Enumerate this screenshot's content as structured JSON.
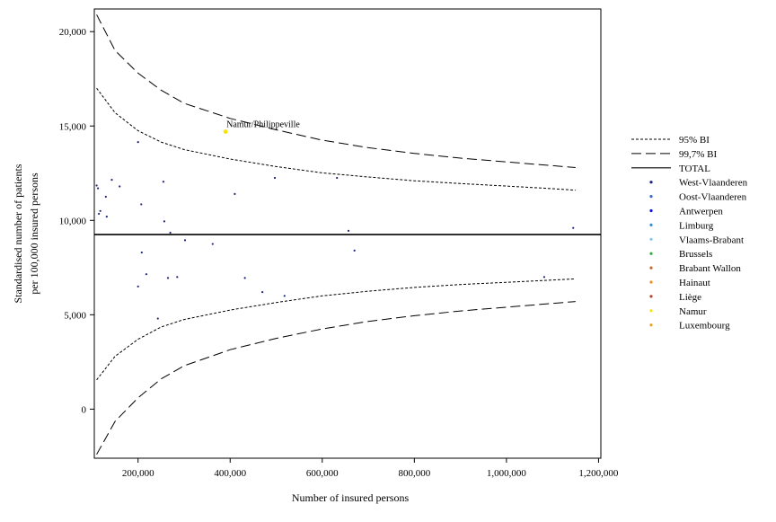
{
  "chart_data": {
    "type": "scatter",
    "xlabel": "Number of insured persons",
    "ylabel_lines": [
      "Standardised number of patients",
      "per 100,000 insured persons"
    ],
    "xlim": [
      105000,
      1205000
    ],
    "ylim": [
      -2600,
      21200
    ],
    "x_ticks": [
      {
        "value": 200000,
        "label": "200,000"
      },
      {
        "value": 400000,
        "label": "400,000"
      },
      {
        "value": 600000,
        "label": "600,000"
      },
      {
        "value": 800000,
        "label": "800,000"
      },
      {
        "value": 1000000,
        "label": "1,000,000"
      },
      {
        "value": 1200000,
        "label": "1,200,000"
      }
    ],
    "y_ticks": [
      {
        "value": 0,
        "label": "0"
      },
      {
        "value": 5000,
        "label": "5,000"
      },
      {
        "value": 10000,
        "label": "10,000"
      },
      {
        "value": 15000,
        "label": "15,000"
      },
      {
        "value": 20000,
        "label": "20,000"
      }
    ],
    "total": 9250,
    "legend": [
      {
        "label": "95% BI",
        "kind": "line",
        "style": "dotted"
      },
      {
        "label": "99,7% BI",
        "kind": "line",
        "style": "dashed"
      },
      {
        "label": "TOTAL",
        "kind": "line",
        "style": "solid"
      },
      {
        "label": "West-Vlaanderen",
        "kind": "point",
        "color": "#1a237e"
      },
      {
        "label": "Oost-Vlaanderen",
        "kind": "point",
        "color": "#3a66c4"
      },
      {
        "label": "Antwerpen",
        "kind": "point",
        "color": "#1010e0"
      },
      {
        "label": "Limburg",
        "kind": "point",
        "color": "#2b8fd6"
      },
      {
        "label": "Vlaams-Brabant",
        "kind": "point",
        "color": "#7fc8ee"
      },
      {
        "label": "Brussels",
        "kind": "point",
        "color": "#2ab03a"
      },
      {
        "label": "Brabant Wallon",
        "kind": "point",
        "color": "#c8642c"
      },
      {
        "label": "Hainaut",
        "kind": "point",
        "color": "#f08a24"
      },
      {
        "label": "Liège",
        "kind": "point",
        "color": "#b5442a"
      },
      {
        "label": "Namur",
        "kind": "point",
        "color": "#f6e400"
      },
      {
        "label": "Luxembourg",
        "kind": "point",
        "color": "#e8a21c"
      }
    ],
    "legend_position": "right",
    "bands": {
      "ci95": {
        "upper": [
          [
            110000,
            17000
          ],
          [
            150000,
            15700
          ],
          [
            200000,
            14750
          ],
          [
            250000,
            14150
          ],
          [
            300000,
            13750
          ],
          [
            400000,
            13250
          ],
          [
            500000,
            12850
          ],
          [
            600000,
            12520
          ],
          [
            700000,
            12300
          ],
          [
            800000,
            12100
          ],
          [
            900000,
            11950
          ],
          [
            1000000,
            11820
          ],
          [
            1100000,
            11680
          ],
          [
            1150000,
            11600
          ]
        ],
        "lower": [
          [
            110000,
            1550
          ],
          [
            150000,
            2800
          ],
          [
            200000,
            3700
          ],
          [
            250000,
            4350
          ],
          [
            300000,
            4750
          ],
          [
            400000,
            5250
          ],
          [
            500000,
            5650
          ],
          [
            600000,
            6000
          ],
          [
            700000,
            6250
          ],
          [
            800000,
            6450
          ],
          [
            900000,
            6600
          ],
          [
            1000000,
            6720
          ],
          [
            1100000,
            6840
          ],
          [
            1150000,
            6900
          ]
        ]
      },
      "ci997": {
        "upper": [
          [
            110000,
            20900
          ],
          [
            150000,
            19000
          ],
          [
            200000,
            17800
          ],
          [
            250000,
            16900
          ],
          [
            300000,
            16200
          ],
          [
            400000,
            15400
          ],
          [
            500000,
            14800
          ],
          [
            600000,
            14250
          ],
          [
            700000,
            13850
          ],
          [
            800000,
            13550
          ],
          [
            900000,
            13300
          ],
          [
            1000000,
            13100
          ],
          [
            1100000,
            12900
          ],
          [
            1150000,
            12800
          ]
        ],
        "lower": [
          [
            110000,
            -2400
          ],
          [
            150000,
            -650
          ],
          [
            200000,
            600
          ],
          [
            250000,
            1600
          ],
          [
            300000,
            2300
          ],
          [
            400000,
            3150
          ],
          [
            500000,
            3750
          ],
          [
            600000,
            4250
          ],
          [
            700000,
            4650
          ],
          [
            800000,
            4950
          ],
          [
            900000,
            5200
          ],
          [
            1000000,
            5400
          ],
          [
            1100000,
            5600
          ],
          [
            1150000,
            5700
          ]
        ]
      }
    },
    "points": [
      {
        "x": 110000,
        "y": 11850
      },
      {
        "x": 113000,
        "y": 11700
      },
      {
        "x": 115000,
        "y": 10350
      },
      {
        "x": 118000,
        "y": 10500
      },
      {
        "x": 130000,
        "y": 11250
      },
      {
        "x": 132000,
        "y": 10200
      },
      {
        "x": 143000,
        "y": 12150
      },
      {
        "x": 160000,
        "y": 11800
      },
      {
        "x": 200000,
        "y": 14150
      },
      {
        "x": 200000,
        "y": 6500
      },
      {
        "x": 207000,
        "y": 10850
      },
      {
        "x": 208000,
        "y": 8300
      },
      {
        "x": 218000,
        "y": 7150
      },
      {
        "x": 243000,
        "y": 4800
      },
      {
        "x": 255000,
        "y": 12050
      },
      {
        "x": 257000,
        "y": 9950
      },
      {
        "x": 265000,
        "y": 6950
      },
      {
        "x": 270000,
        "y": 9350
      },
      {
        "x": 285000,
        "y": 7000
      },
      {
        "x": 302000,
        "y": 8950
      },
      {
        "x": 362000,
        "y": 8750
      },
      {
        "x": 410000,
        "y": 11400
      },
      {
        "x": 432000,
        "y": 6950
      },
      {
        "x": 470000,
        "y": 6200
      },
      {
        "x": 497000,
        "y": 12250
      },
      {
        "x": 518000,
        "y": 6000
      },
      {
        "x": 632000,
        "y": 12250
      },
      {
        "x": 657000,
        "y": 9450
      },
      {
        "x": 670000,
        "y": 8400
      },
      {
        "x": 1082000,
        "y": 7000
      },
      {
        "x": 1145000,
        "y": 9600
      }
    ],
    "highlight": {
      "x": 390000,
      "y": 14700,
      "label": "Namur/Philippeville",
      "color": "#f6e400"
    }
  }
}
